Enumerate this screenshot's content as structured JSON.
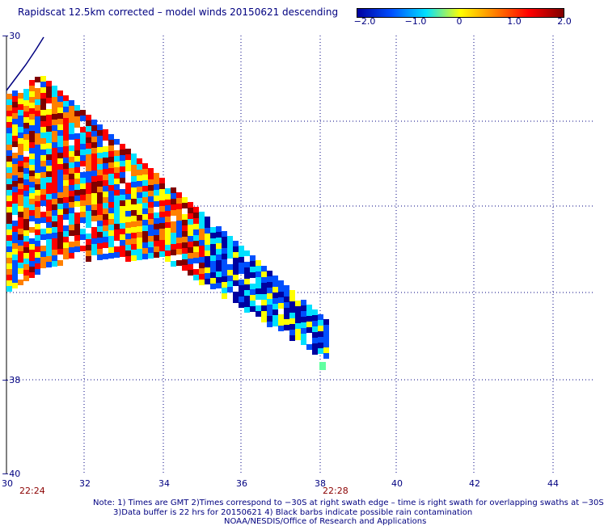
{
  "title": "Rapidscat 12.5km corrected – model winds 20150621 descending",
  "colorbar": {
    "labels": [
      "−2.0",
      "−1.0",
      "0",
      "1.0",
      "2.0"
    ],
    "values": [
      -2.0,
      -1.0,
      0,
      1.0,
      2.0
    ],
    "colors": [
      "#0000a0",
      "#0050ff",
      "#00e0ff",
      "#ffff00",
      "#ff8000",
      "#ff0000",
      "#800000"
    ]
  },
  "axes": {
    "x_ticks": [
      "30",
      "32",
      "34",
      "36",
      "38",
      "40",
      "42",
      "44"
    ],
    "y_ticks": [
      "−30",
      "−38",
      "−40"
    ]
  },
  "time_labels": [
    "22:24",
    "22:28"
  ],
  "notes": {
    "line1": "Note: 1) Times are GMT 2)Times correspond to −30S at right swath edge – time is right swath for overlapping swaths at −30S",
    "line2": "3)Data buffer is 22 hrs for 20150621 4) Black barbs indicate possible rain contamination",
    "line3": "NOAA/NESDIS/Office of Research and Applications"
  }
}
